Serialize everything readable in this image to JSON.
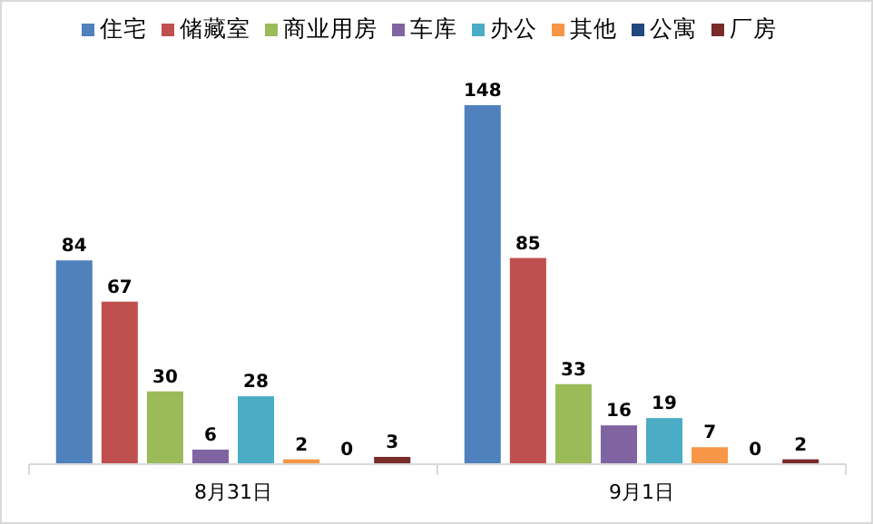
{
  "chart_data": {
    "type": "bar",
    "categories": [
      "8月31日",
      "9月1日"
    ],
    "series": [
      {
        "name": "住宅",
        "color": "#4f81bd",
        "values": [
          84,
          148
        ]
      },
      {
        "name": "储藏室",
        "color": "#c0504d",
        "values": [
          67,
          85
        ]
      },
      {
        "name": "商业用房",
        "color": "#9bbb59",
        "values": [
          30,
          33
        ]
      },
      {
        "name": "车库",
        "color": "#8064a2",
        "values": [
          6,
          16
        ]
      },
      {
        "name": "办公",
        "color": "#4bacc6",
        "values": [
          28,
          19
        ]
      },
      {
        "name": "其他",
        "color": "#f79646",
        "values": [
          2,
          7
        ]
      },
      {
        "name": "公寓",
        "color": "#1f497d",
        "values": [
          0,
          0
        ]
      },
      {
        "name": "厂房",
        "color": "#772c2a",
        "values": [
          3,
          2
        ]
      }
    ],
    "data_labels": true,
    "legend": "top",
    "grid": false
  }
}
